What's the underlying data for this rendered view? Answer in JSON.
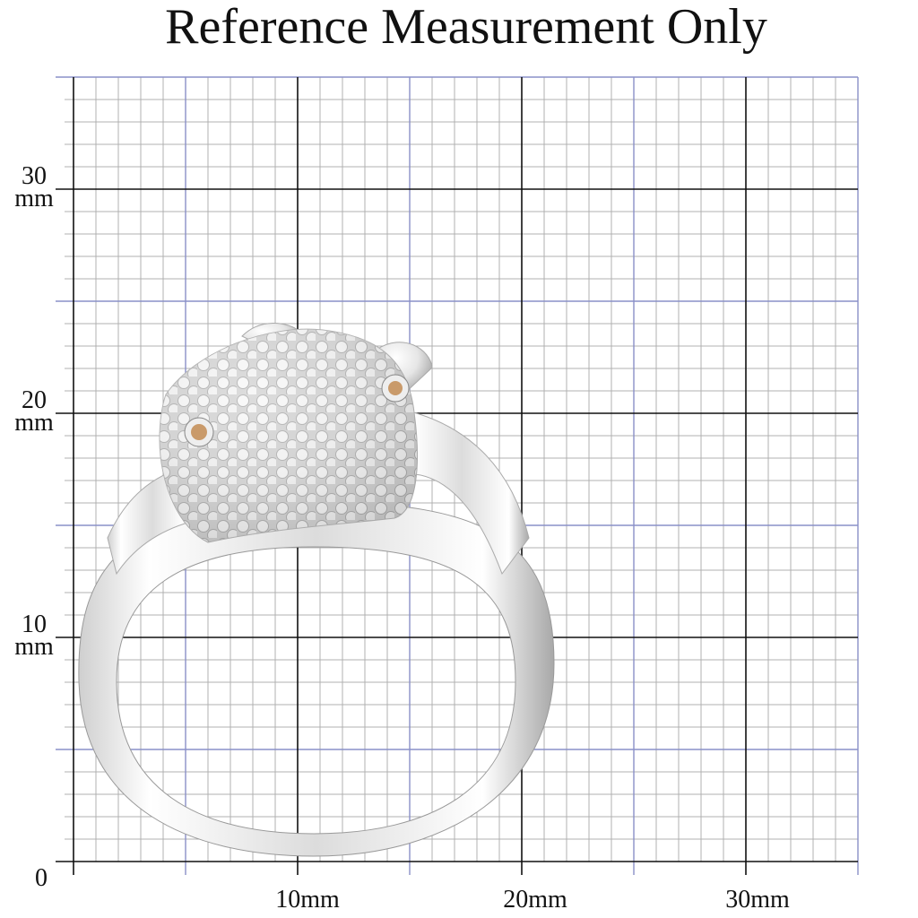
{
  "header": {
    "title": "Reference Measurement Only"
  },
  "y_labels": [
    {
      "number": "30",
      "unit": "mm"
    },
    {
      "number": "20",
      "unit": "mm"
    },
    {
      "number": "10",
      "unit": "mm"
    },
    {
      "number": "0"
    }
  ],
  "x_labels": [
    "10mm",
    "20mm",
    "30mm"
  ]
}
